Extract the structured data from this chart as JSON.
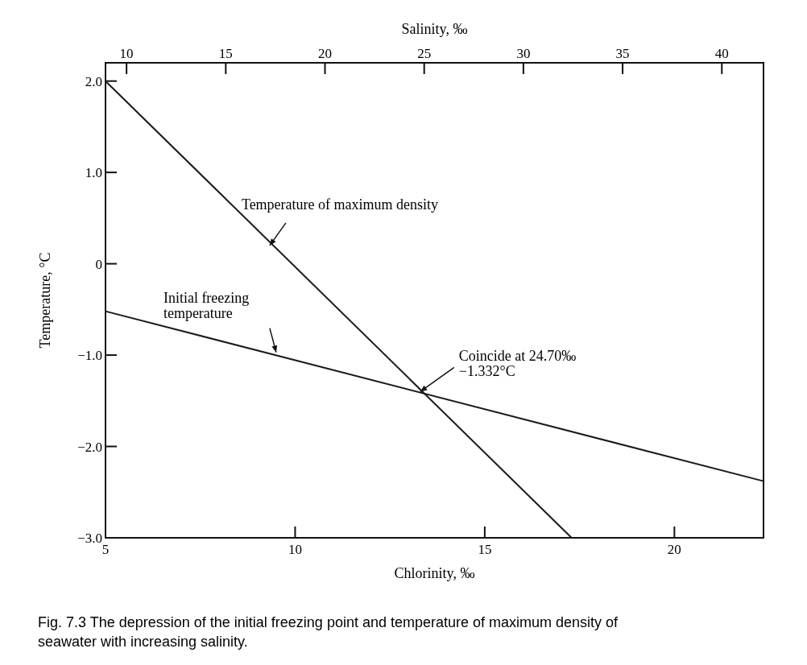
{
  "chart_data": {
    "type": "line",
    "xlabel": "Chlorinity, ‰",
    "x2label": "Salinity, ‰",
    "ylabel": "Temperature, °C",
    "xlim": [
      5,
      22.35
    ],
    "xticks": [
      5,
      10,
      15,
      20
    ],
    "x2lim": [
      8.94,
      42.1
    ],
    "x2ticks": [
      10,
      15,
      20,
      25,
      30,
      35,
      40
    ],
    "ylim": [
      -3,
      2.2
    ],
    "yticks": [
      {
        "value": 2,
        "label": "2.0"
      },
      {
        "value": 1,
        "label": "1.0"
      },
      0,
      {
        "value": -1,
        "label": "−1.0"
      },
      {
        "value": -2,
        "label": "−2.0"
      },
      {
        "value": -3,
        "label": "−3.0"
      }
    ],
    "grid": false,
    "marker": "none",
    "line_style": "solid",
    "series": [
      {
        "color": "#1a1a1a",
        "x": [
          5,
          17.29
        ],
        "values": [
          2.0,
          -3.0
        ]
      },
      {
        "color": "#1a1a1a",
        "x": [
          5,
          22.35
        ],
        "values": [
          -0.52,
          -2.38
        ]
      }
    ],
    "annotations": [
      {
        "text": "Temperature of maximum density",
        "x": 9.33,
        "y": 0.2
      },
      {
        "text": "Initial freezing\ntemperature",
        "x": 9.5,
        "y": -0.97
      },
      {
        "text": "Coincide at 24.70‰\n−1.332°C",
        "x": 13.3,
        "y": -1.4
      },
      "Fig. 7.3  The depression of the initial freezing point and temperature of maximum density of seawater with increasing salinity."
    ]
  }
}
